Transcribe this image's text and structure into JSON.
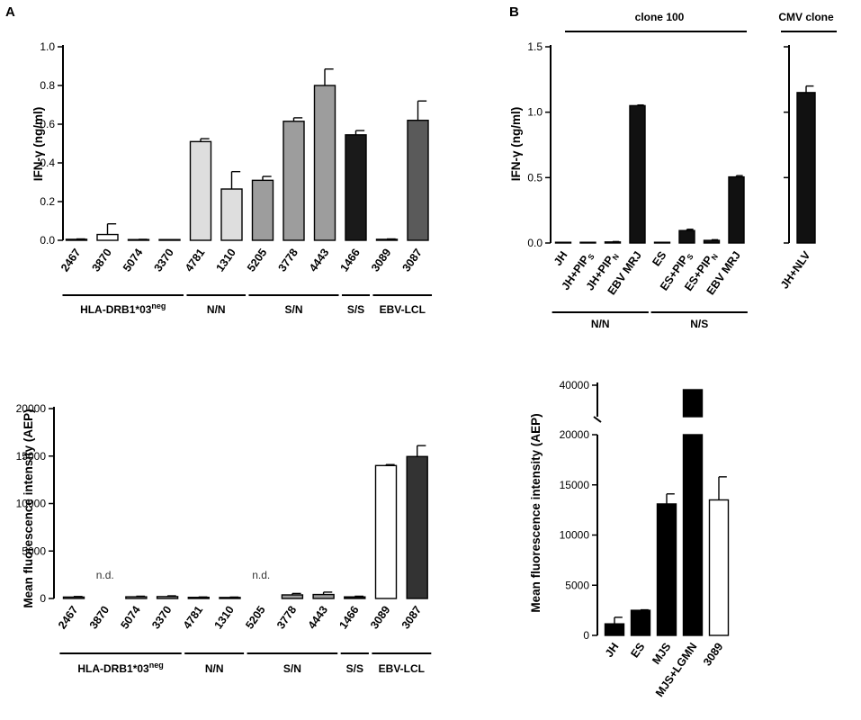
{
  "panel_labels": {
    "a": "A",
    "b": "B"
  },
  "chart_data": [
    {
      "id": "a_top",
      "type": "bar",
      "ylabel": "IFN-γ (ng/ml)",
      "ylim": [
        0,
        1.0
      ],
      "yticks": [
        "0.0",
        "0.2",
        "0.4",
        "0.6",
        "0.8",
        "1.0"
      ],
      "categories": [
        "2467",
        "3870",
        "5074",
        "3370",
        "4781",
        "1310",
        "5205",
        "3778",
        "4443",
        "1466",
        "3089",
        "3087"
      ],
      "values": [
        0.005,
        0.03,
        0.003,
        0.002,
        0.51,
        0.265,
        0.31,
        0.615,
        0.8,
        0.545,
        0.005,
        0.62
      ],
      "errors": [
        0.002,
        0.055,
        0.002,
        0.001,
        0.015,
        0.09,
        0.02,
        0.018,
        0.085,
        0.022,
        0.002,
        0.1
      ],
      "fills": [
        "#ffffff",
        "#ffffff",
        "#ffffff",
        "#ffffff",
        "#dedede",
        "#dedede",
        "#9d9d9d",
        "#9d9d9d",
        "#9d9d9d",
        "#1a1a1a",
        "#5a5a5a",
        "#5a5a5a"
      ],
      "groups": [
        {
          "label": "HLA-DRB1*03",
          "sup": "neg",
          "start": 0,
          "end": 3
        },
        {
          "label": "N/N",
          "start": 4,
          "end": 5
        },
        {
          "label": "S/N",
          "start": 6,
          "end": 8
        },
        {
          "label": "S/S",
          "start": 9,
          "end": 9
        },
        {
          "label": "EBV-LCL",
          "start": 10,
          "end": 11
        }
      ]
    },
    {
      "id": "a_bottom",
      "type": "bar",
      "ylabel": "Mean fluorescence intensity (AEP)",
      "ylim": [
        0,
        20000
      ],
      "yticks": [
        "0",
        "5000",
        "10000",
        "15000",
        "20000"
      ],
      "categories": [
        "2467",
        "3870",
        "5074",
        "3370",
        "4781",
        "1310",
        "5205",
        "3778",
        "4443",
        "1466",
        "3089",
        "3087"
      ],
      "values": [
        150,
        null,
        180,
        200,
        120,
        110,
        null,
        380,
        420,
        170,
        14000,
        14950
      ],
      "errors": [
        60,
        0,
        60,
        80,
        40,
        40,
        0,
        150,
        250,
        70,
        100,
        1150
      ],
      "fills": [
        "#bdbdbd",
        "#ffffff",
        "#bdbdbd",
        "#bdbdbd",
        "#dedede",
        "#dedede",
        "#9d9d9d",
        "#9d9d9d",
        "#9d9d9d",
        "#1a1a1a",
        "#ffffff",
        "#333333"
      ],
      "annotations": [
        {
          "index": 1,
          "text": "n.d."
        },
        {
          "index": 6,
          "text": "n.d."
        }
      ],
      "groups": [
        {
          "label": "HLA-DRB1*03",
          "sup": "neg",
          "start": 0,
          "end": 3
        },
        {
          "label": "N/N",
          "start": 4,
          "end": 5
        },
        {
          "label": "S/N",
          "start": 6,
          "end": 8
        },
        {
          "label": "S/S",
          "start": 9,
          "end": 9
        },
        {
          "label": "EBV-LCL",
          "start": 10,
          "end": 11
        }
      ]
    },
    {
      "id": "b_top",
      "type": "bar",
      "ylabel": "IFN-γ (ng/ml)",
      "ylim": [
        0,
        1.5
      ],
      "yticks": [
        "0.0",
        "0.5",
        "1.0",
        "1.5"
      ],
      "top_label": "clone 100",
      "categories": [
        {
          "base": "JH"
        },
        {
          "base": "JH+PIP",
          "sub": "S"
        },
        {
          "base": "JH+PIP",
          "sub": "N"
        },
        {
          "base": "EBV MRJ"
        },
        {
          "base": "ES"
        },
        {
          "base": "ES+PIP",
          "sub": "S"
        },
        {
          "base": "ES+PIP",
          "sub": "N"
        },
        {
          "base": "EBV MRJ"
        }
      ],
      "values": [
        0.002,
        0.003,
        0.008,
        1.05,
        0.002,
        0.095,
        0.02,
        0.505
      ],
      "errors": [
        0.001,
        0.001,
        0.003,
        0.005,
        0.001,
        0.01,
        0.005,
        0.01
      ],
      "groups": [
        {
          "label": "N/N",
          "start": 0,
          "end": 3
        },
        {
          "label": "N/S",
          "start": 4,
          "end": 7
        }
      ]
    },
    {
      "id": "b_top_cmv",
      "type": "bar",
      "top_label": "CMV clone",
      "ylim": [
        0,
        1.5
      ],
      "categories": [
        "JH+NLV"
      ],
      "values": [
        1.15
      ],
      "errors": [
        0.05
      ]
    },
    {
      "id": "b_bottom",
      "type": "bar",
      "ylabel": "Mean fluorescence intensity (AEP)",
      "ylim": [
        0,
        40000
      ],
      "axis_break": [
        20000,
        40000
      ],
      "yticks": [
        "0",
        "5000",
        "10000",
        "15000",
        "20000",
        "40000"
      ],
      "categories": [
        "JH",
        "ES",
        "MJS",
        "MJS+LGMN",
        "3089"
      ],
      "values": [
        1150,
        2500,
        13100,
        39000,
        13500
      ],
      "errors": [
        650,
        50,
        1000,
        0,
        2300
      ],
      "fills": [
        "#000000",
        "#000000",
        "#000000",
        "#000000",
        "#ffffff"
      ]
    }
  ]
}
